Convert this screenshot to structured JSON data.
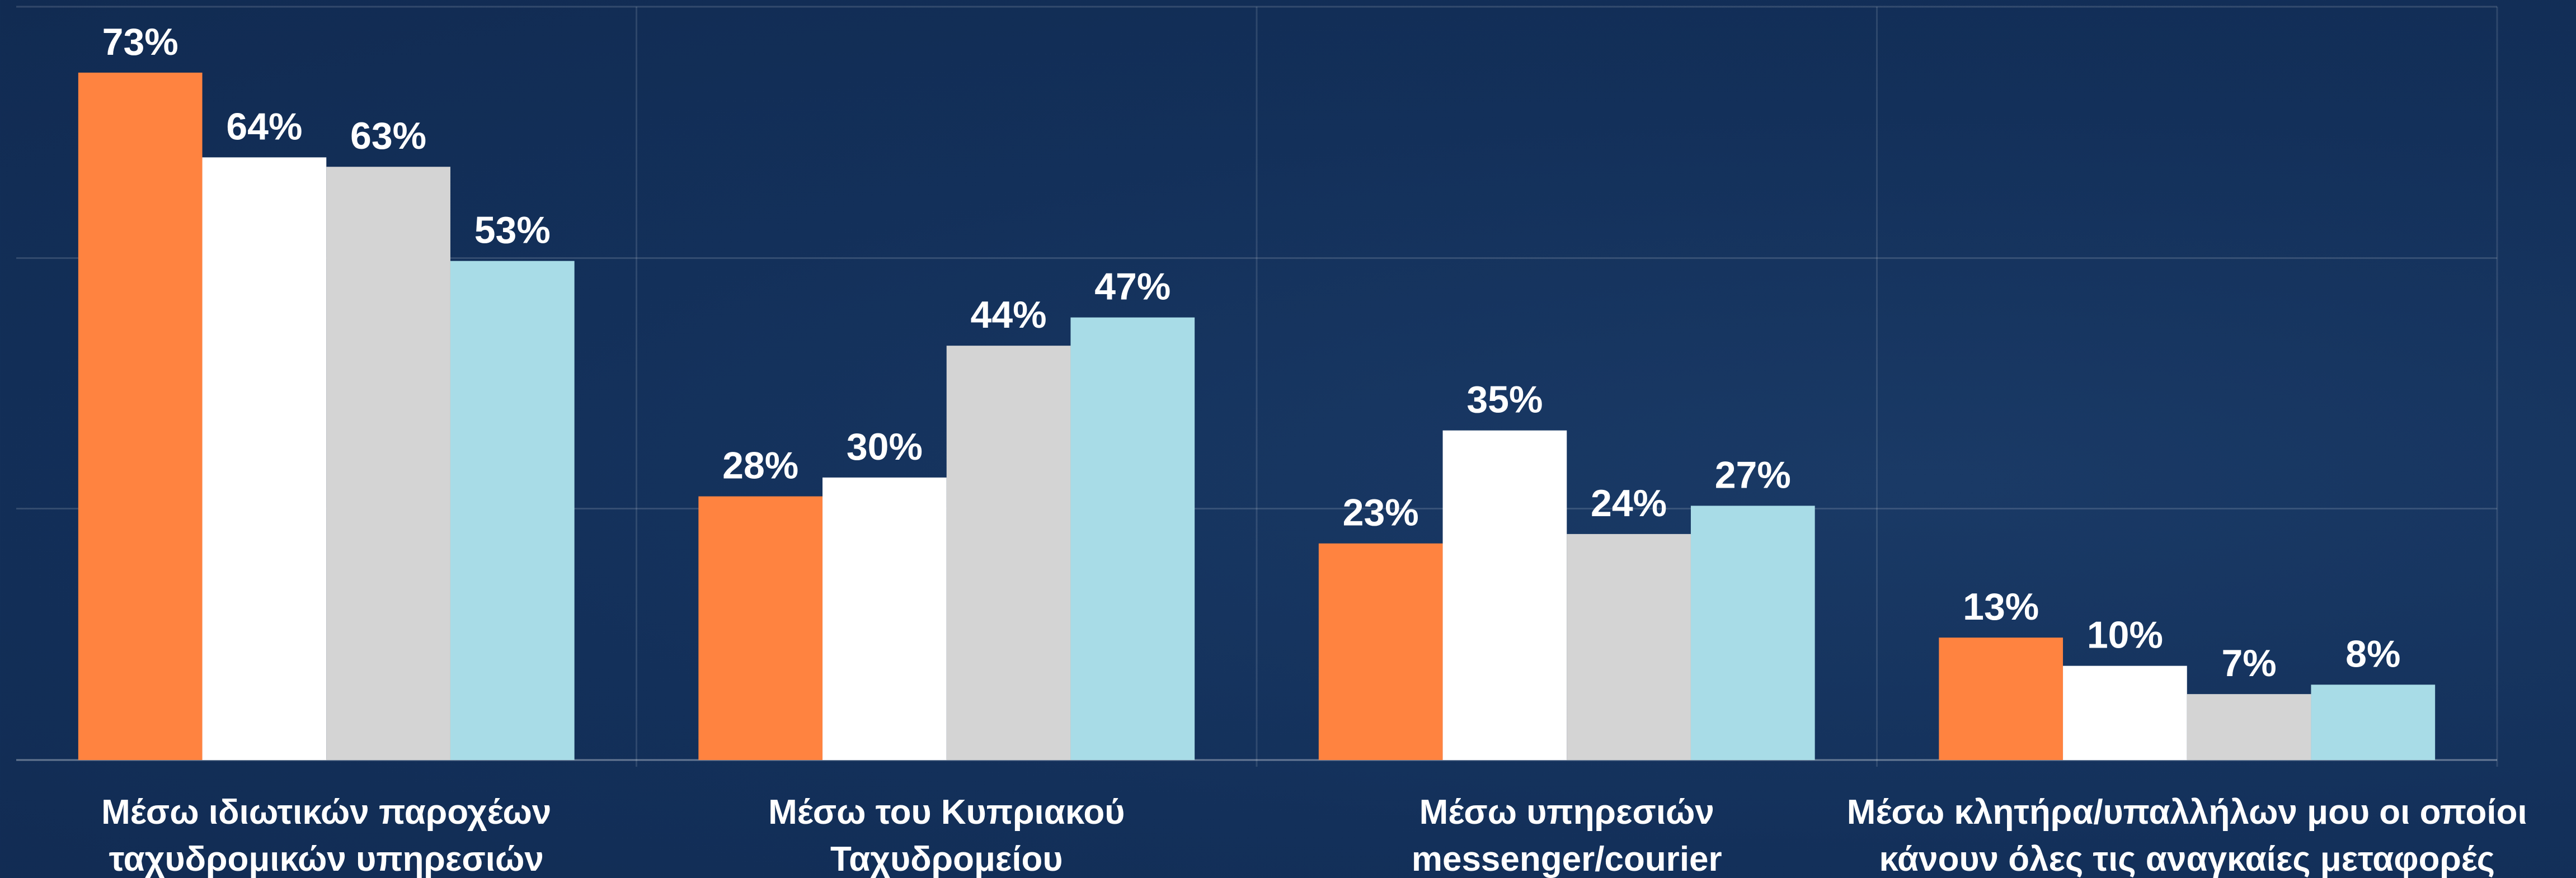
{
  "chart_data": {
    "type": "bar",
    "categories": [
      "Μέσω ιδιωτικών παροχέων\nταχυδρομικών υπηρεσιών",
      "Μέσω του Κυπριακού\nΤαχυδρομείου",
      "Μέσω υπηρεσιών\nmessenger/courier",
      "Μέσω κλητήρα/υπαλλήλων μου οι οποίοι\nκάνουν όλες τις αναγκαίες μεταφορές"
    ],
    "series": [
      {
        "color": "#ff8340",
        "values": [
          73,
          28,
          23,
          13
        ],
        "value_labels": [
          "73%",
          "28%",
          "23%",
          "13%"
        ]
      },
      {
        "color": "#ffffff",
        "values": [
          64,
          30,
          35,
          10
        ],
        "value_labels": [
          "64%",
          "30%",
          "35%",
          "10%"
        ]
      },
      {
        "color": "#d4d4d4",
        "values": [
          63,
          44,
          24,
          7
        ],
        "value_labels": [
          "63%",
          "44%",
          "24%",
          "7%"
        ]
      },
      {
        "color": "#a8dce7",
        "values": [
          53,
          47,
          27,
          8
        ],
        "value_labels": [
          "53%",
          "47%",
          "27%",
          "8%"
        ]
      }
    ],
    "ylim": [
      0,
      80
    ],
    "yticks": [
      0,
      26.7,
      53.3,
      80
    ],
    "grid": true
  }
}
